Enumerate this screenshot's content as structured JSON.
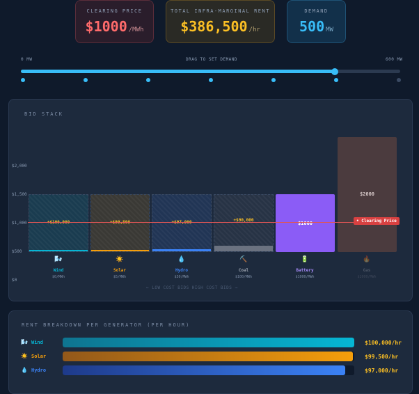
{
  "kpis": {
    "clearing_price": {
      "label": "CLEARING PRICE",
      "value": "$1000",
      "unit": "/MWh"
    },
    "rent": {
      "label": "TOTAL INFRA-MARGINAL RENT",
      "value": "$386,500",
      "unit": "/hr"
    },
    "demand": {
      "label": "DEMAND",
      "value": "500",
      "unit": "MW"
    }
  },
  "slider": {
    "min_label": "0 MW",
    "center_label": "DRAG TO SET DEMAND",
    "max_label": "600 MW",
    "value_mw": 500,
    "max_mw": 600
  },
  "bid_stack": {
    "title": "BID STACK",
    "y_labels": [
      "$2,000",
      "$1,500",
      "$1,000",
      "$500",
      "$0"
    ],
    "clearing_tag": "• Clearing Price",
    "order_hint": "← LOW COST BIDS     HIGH COST BIDS →",
    "generators": [
      {
        "name": "Wind",
        "icon": "🌬️",
        "cost": "$0/MWh",
        "rent": "+$100,000",
        "dispatch_pct": 3,
        "color": "#06b6d4",
        "online": true
      },
      {
        "name": "Solar",
        "icon": "☀️",
        "cost": "$5/MWh",
        "rent": "+$99,500",
        "dispatch_pct": 3,
        "color": "#f59e0b",
        "online": true
      },
      {
        "name": "Hydro",
        "icon": "💧",
        "cost": "$30/MWh",
        "rent": "+$97,000",
        "dispatch_pct": 4,
        "color": "#3b82f6",
        "online": true
      },
      {
        "name": "Coal",
        "icon": "⛏️",
        "cost": "$100/MWh",
        "rent": "+$90,000",
        "dispatch_pct": 10,
        "color": "#6b7280",
        "online": true
      },
      {
        "name": "Battery",
        "icon": "🔋",
        "cost": "$1000/MWh",
        "price_label": "$1000",
        "dispatch_pct": 100,
        "color": "#8b5cf6",
        "online": true
      },
      {
        "name": "Gas",
        "icon": "🔥",
        "cost": "$2000/MWh",
        "price_label": "$2000",
        "dispatch_pct": 100,
        "color": "#4b3b3e",
        "online": false
      }
    ]
  },
  "rent_breakdown": {
    "title": "RENT BREAKDOWN PER GENERATOR (PER HOUR)",
    "rows": [
      {
        "name": "Wind",
        "icon": "🌬️",
        "value": "$100,000/hr",
        "fill_pct": 100,
        "color": "#06b6d4"
      },
      {
        "name": "Solar",
        "icon": "☀️",
        "value": "$99,500/hr",
        "fill_pct": 99.5,
        "color": "#f59e0b"
      },
      {
        "name": "Hydro",
        "icon": "💧",
        "value": "$97,000/hr",
        "fill_pct": 97,
        "color": "#3b82f6"
      }
    ]
  }
}
